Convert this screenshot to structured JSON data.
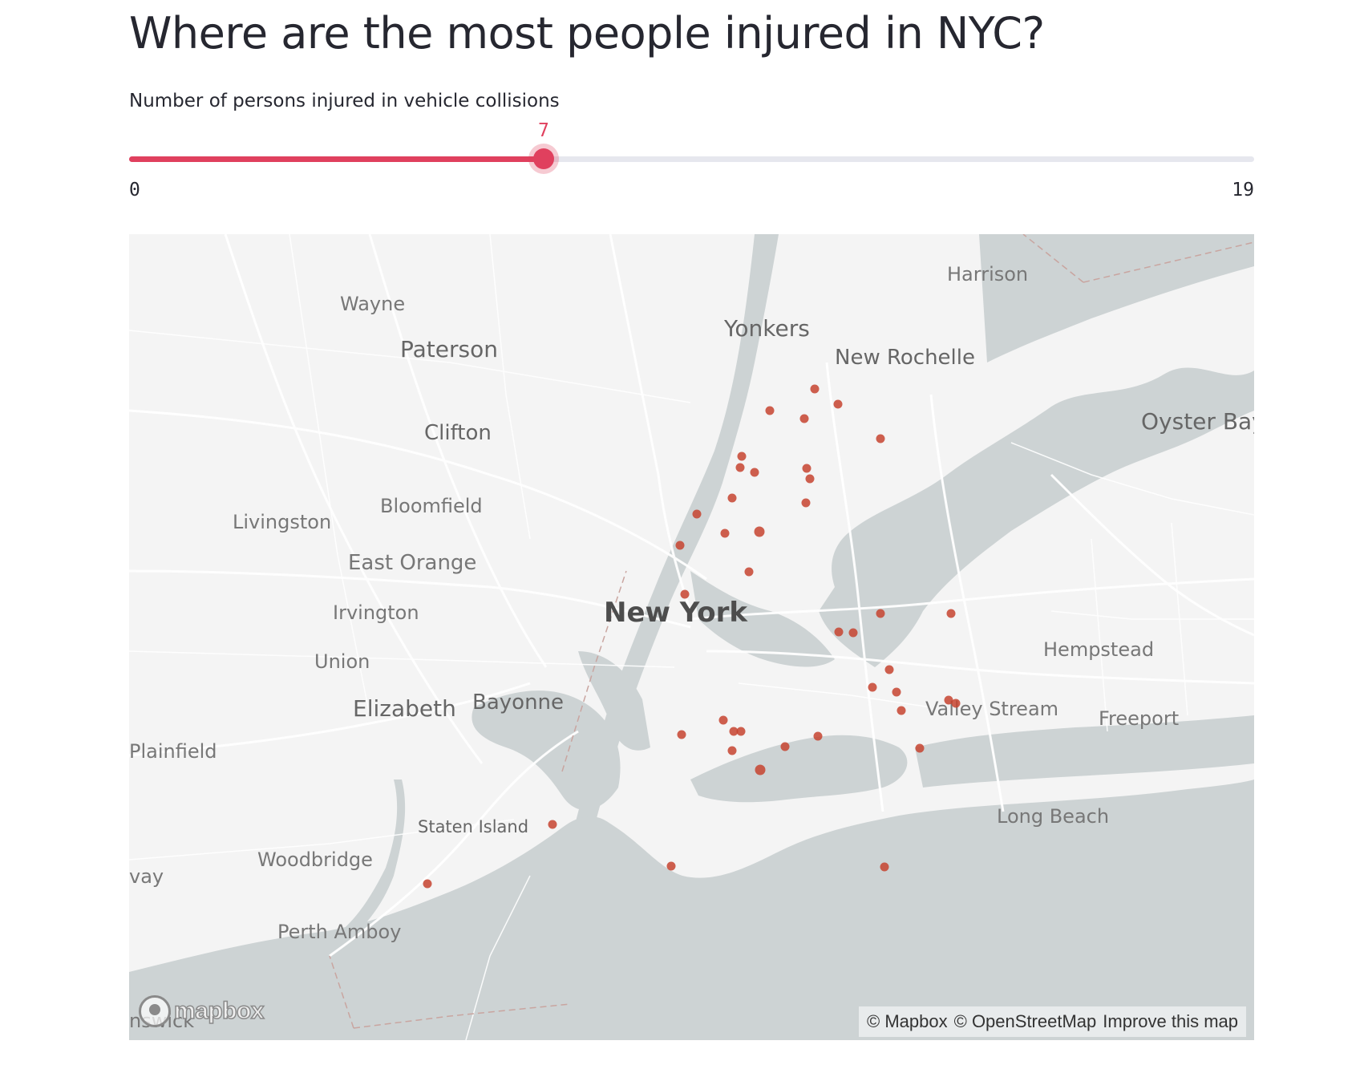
{
  "title": "Where are the most people injured in NYC?",
  "slider": {
    "label": "Number of persons injured in vehicle collisions",
    "value": 7,
    "min": 0,
    "max": 19,
    "value_text": "7",
    "min_text": "0",
    "max_text": "19",
    "accent_color": "#e0405e"
  },
  "map": {
    "places": [
      {
        "name": "Harrison"
      },
      {
        "name": "Wayne"
      },
      {
        "name": "Yonkers"
      },
      {
        "name": "Paterson"
      },
      {
        "name": "New Rochelle"
      },
      {
        "name": "Oyster Bay"
      },
      {
        "name": "Clifton"
      },
      {
        "name": "Bloomfield"
      },
      {
        "name": "Livingston"
      },
      {
        "name": "East Orange"
      },
      {
        "name": "Irvington"
      },
      {
        "name": "New York"
      },
      {
        "name": "Union"
      },
      {
        "name": "Hempstead"
      },
      {
        "name": "Elizabeth"
      },
      {
        "name": "Bayonne"
      },
      {
        "name": "Valley Stream"
      },
      {
        "name": "Freeport"
      },
      {
        "name": "Plainfield"
      },
      {
        "name": "Staten Island"
      },
      {
        "name": "Long Beach"
      },
      {
        "name": "Woodbridge"
      },
      {
        "name": "Perth Amboy"
      },
      {
        "name": "vay"
      },
      {
        "name": "nswick"
      }
    ],
    "point_color": "#c5432f",
    "water_color": "#cdd3d4",
    "land_color": "#f4f4f4",
    "logo_text": "mapbox",
    "attribution": {
      "mapbox": "© Mapbox",
      "osm": "© OpenStreetMap",
      "improve": "Improve this map"
    }
  }
}
